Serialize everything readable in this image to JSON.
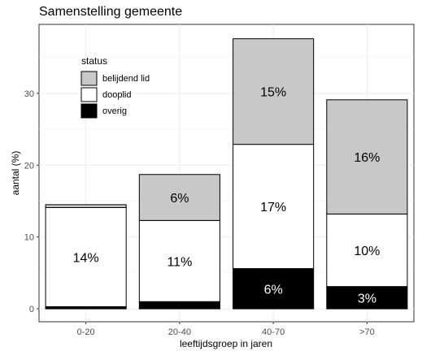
{
  "chart_data": {
    "type": "bar",
    "stacked": true,
    "title": "Samenstelling gemeente",
    "xlabel": "leeftijdsgroep in jaren",
    "ylabel": "aantal (%)",
    "categories": [
      "0-20",
      "20-40",
      "40-70",
      ">70"
    ],
    "ylim": [
      -1.8,
      39.6
    ],
    "yticks": [
      0,
      10,
      20,
      30
    ],
    "grid": true,
    "legend": {
      "title": "status",
      "position": "top-left"
    },
    "series": [
      {
        "name": "overig",
        "color": "#000000",
        "label_color": "#ffffff",
        "values": [
          0.3,
          1.0,
          5.6,
          3.1
        ],
        "labels": [
          "",
          "",
          "6%",
          "3%"
        ]
      },
      {
        "name": "dooplid",
        "color": "#ffffff",
        "label_color": "#000000",
        "values": [
          13.8,
          11.3,
          17.3,
          10.1
        ],
        "labels": [
          "14%",
          "11%",
          "17%",
          "10%"
        ]
      },
      {
        "name": "belijdend lid",
        "color": "#c8c8c8",
        "label_color": "#000000",
        "values": [
          0.4,
          6.4,
          14.7,
          15.9
        ],
        "labels": [
          "",
          "6%",
          "15%",
          "16%"
        ]
      }
    ]
  }
}
